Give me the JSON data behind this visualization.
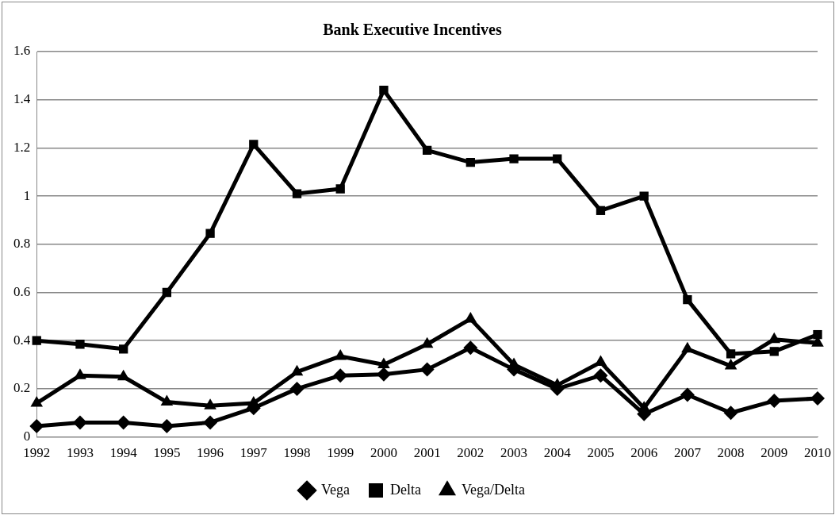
{
  "chart_data": {
    "type": "line",
    "title": "Bank Executive Incentives",
    "categories": [
      "1992",
      "1993",
      "1994",
      "1995",
      "1996",
      "1997",
      "1998",
      "1999",
      "2000",
      "2001",
      "2002",
      "2003",
      "2004",
      "2005",
      "2006",
      "2007",
      "2008",
      "2009",
      "2010"
    ],
    "series": [
      {
        "name": "Vega",
        "color": "#000000",
        "marker": "diamond",
        "values": [
          0.045,
          0.06,
          0.06,
          0.045,
          0.06,
          0.12,
          0.2,
          0.255,
          0.26,
          0.28,
          0.37,
          0.28,
          0.2,
          0.255,
          0.095,
          0.175,
          0.1,
          0.15,
          0.16
        ]
      },
      {
        "name": "Delta",
        "color": "#000000",
        "marker": "square",
        "values": [
          0.4,
          0.385,
          0.365,
          0.6,
          0.845,
          1.215,
          1.01,
          1.03,
          1.44,
          1.19,
          1.14,
          1.155,
          1.155,
          0.94,
          1.0,
          0.57,
          0.345,
          0.355,
          0.425
        ]
      },
      {
        "name": "Vega/Delta",
        "color": "#000000",
        "marker": "triangle",
        "values": [
          0.14,
          0.255,
          0.25,
          0.145,
          0.13,
          0.14,
          0.27,
          0.335,
          0.3,
          0.385,
          0.49,
          0.3,
          0.215,
          0.31,
          0.12,
          0.365,
          0.295,
          0.405,
          0.39
        ]
      }
    ],
    "ylim": [
      0,
      1.6
    ],
    "yticks": [
      0,
      0.2,
      0.4,
      0.6,
      0.8,
      1,
      1.2,
      1.4,
      1.6
    ],
    "grid": "y",
    "legend": "bottom",
    "line_style": "solid"
  }
}
